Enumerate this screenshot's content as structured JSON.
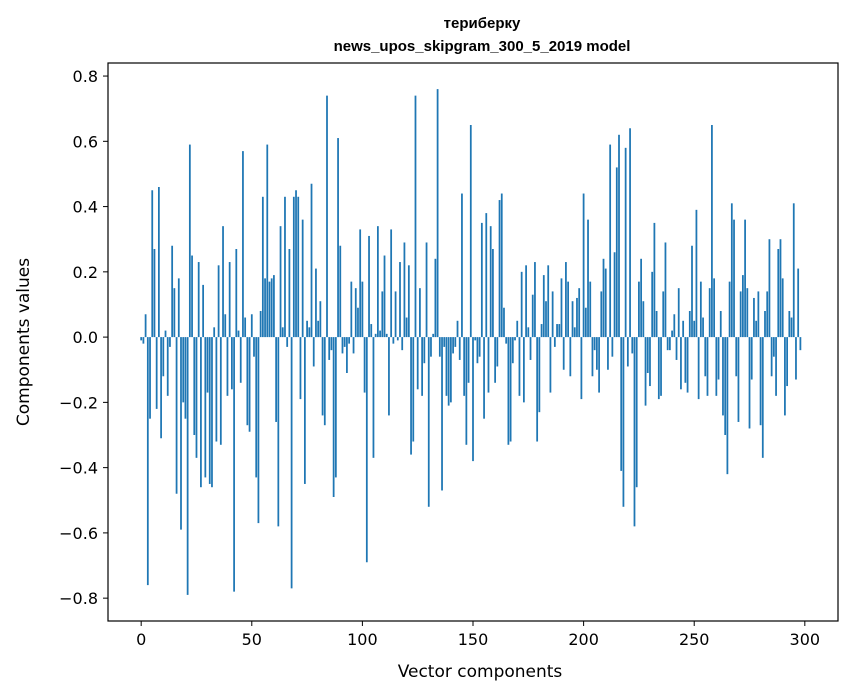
{
  "chart_data": {
    "type": "bar",
    "title_line1": "териберку",
    "title_line2": "news_upos_skipgram_300_5_2019 model",
    "xlabel": "Vector components",
    "ylabel": "Components values",
    "xlim": [
      -15,
      315
    ],
    "ylim": [
      -0.87,
      0.84
    ],
    "x_ticks": [
      0,
      50,
      100,
      150,
      200,
      250,
      300
    ],
    "y_ticks": [
      -0.8,
      -0.6,
      -0.4,
      -0.2,
      0.0,
      0.2,
      0.4,
      0.6,
      0.8
    ],
    "y_tick_labels": [
      "−0.8",
      "−0.6",
      "−0.4",
      "−0.2",
      "0.0",
      "0.2",
      "0.4",
      "0.6",
      "0.8"
    ],
    "grid": false,
    "bar_color": "#1f77b4",
    "values": [
      -0.01,
      -0.02,
      0.07,
      -0.76,
      -0.25,
      0.45,
      0.27,
      -0.22,
      0.46,
      -0.31,
      -0.12,
      0.02,
      -0.18,
      -0.03,
      0.28,
      0.15,
      -0.48,
      0.18,
      -0.59,
      -0.2,
      -0.25,
      -0.79,
      0.59,
      0.25,
      -0.3,
      -0.37,
      0.23,
      -0.46,
      0.16,
      -0.43,
      -0.17,
      -0.45,
      -0.46,
      0.03,
      -0.32,
      0.22,
      -0.33,
      0.34,
      0.07,
      -0.18,
      0.23,
      -0.16,
      -0.78,
      0.27,
      0.02,
      -0.14,
      0.57,
      0.06,
      -0.27,
      -0.29,
      0.07,
      -0.06,
      -0.43,
      -0.57,
      0.08,
      0.43,
      0.18,
      0.59,
      0.17,
      0.18,
      0.19,
      -0.26,
      -0.58,
      0.34,
      0.03,
      0.43,
      -0.03,
      0.27,
      -0.77,
      0.43,
      0.45,
      0.43,
      -0.19,
      0.36,
      -0.45,
      0.05,
      0.03,
      0.47,
      -0.09,
      0.21,
      0.05,
      0.11,
      -0.24,
      -0.27,
      0.74,
      -0.07,
      -0.04,
      -0.49,
      -0.43,
      0.61,
      0.28,
      -0.05,
      -0.03,
      -0.11,
      -0.02,
      0.17,
      -0.05,
      0.15,
      0.09,
      0.33,
      0.17,
      -0.17,
      -0.69,
      0.31,
      0.04,
      -0.37,
      0.01,
      0.34,
      0.02,
      0.14,
      0.25,
      0.01,
      -0.24,
      0.33,
      -0.02,
      0.14,
      -0.01,
      0.23,
      -0.04,
      0.29,
      0.06,
      0.22,
      -0.36,
      -0.32,
      0.74,
      -0.16,
      0.15,
      -0.18,
      -0.08,
      0.29,
      -0.52,
      -0.06,
      0.01,
      0.24,
      0.76,
      -0.06,
      -0.47,
      -0.03,
      -0.18,
      -0.21,
      -0.2,
      -0.05,
      -0.03,
      0.05,
      -0.07,
      0.44,
      -0.18,
      -0.33,
      -0.14,
      0.65,
      -0.38,
      -0.01,
      -0.08,
      -0.06,
      0.35,
      -0.25,
      0.38,
      -0.17,
      0.34,
      0.27,
      -0.14,
      -0.09,
      0.42,
      0.44,
      0.09,
      -0.02,
      -0.33,
      -0.32,
      -0.08,
      -0.01,
      0.05,
      -0.18,
      0.2,
      -0.2,
      0.22,
      0.03,
      -0.07,
      0.13,
      0.23,
      -0.32,
      -0.23,
      0.04,
      0.19,
      0.11,
      0.22,
      -0.17,
      0.14,
      -0.03,
      0.04,
      0.04,
      0.18,
      -0.1,
      0.23,
      0.17,
      -0.12,
      0.11,
      0.03,
      0.12,
      0.15,
      -0.19,
      0.44,
      0.09,
      0.36,
      0.17,
      -0.12,
      -0.04,
      -0.1,
      -0.17,
      0.14,
      0.24,
      0.21,
      -0.1,
      0.59,
      -0.06,
      0.26,
      0.52,
      0.62,
      -0.41,
      -0.52,
      0.58,
      -0.09,
      0.64,
      -0.05,
      -0.58,
      -0.46,
      0.17,
      0.24,
      0.11,
      -0.21,
      -0.11,
      -0.15,
      0.2,
      0.35,
      0.08,
      -0.19,
      -0.18,
      0.14,
      0.29,
      -0.04,
      -0.04,
      0.02,
      0.07,
      -0.07,
      0.15,
      -0.16,
      0.05,
      -0.14,
      -0.17,
      0.08,
      0.28,
      0.05,
      0.39,
      -0.19,
      0.17,
      0.06,
      -0.12,
      -0.18,
      0.15,
      0.65,
      0.18,
      -0.18,
      -0.13,
      0.08,
      -0.24,
      -0.3,
      -0.42,
      0.17,
      0.41,
      0.36,
      -0.12,
      -0.26,
      0.14,
      0.19,
      0.36,
      0.15,
      -0.28,
      -0.13,
      0.12,
      0.05,
      0.14,
      -0.27,
      -0.37,
      0.08,
      0.14,
      0.3,
      -0.12,
      -0.06,
      -0.18,
      0.27,
      0.3,
      0.18,
      -0.24,
      -0.15,
      0.08,
      0.06,
      0.41,
      -0.13,
      0.21,
      -0.04
    ]
  }
}
